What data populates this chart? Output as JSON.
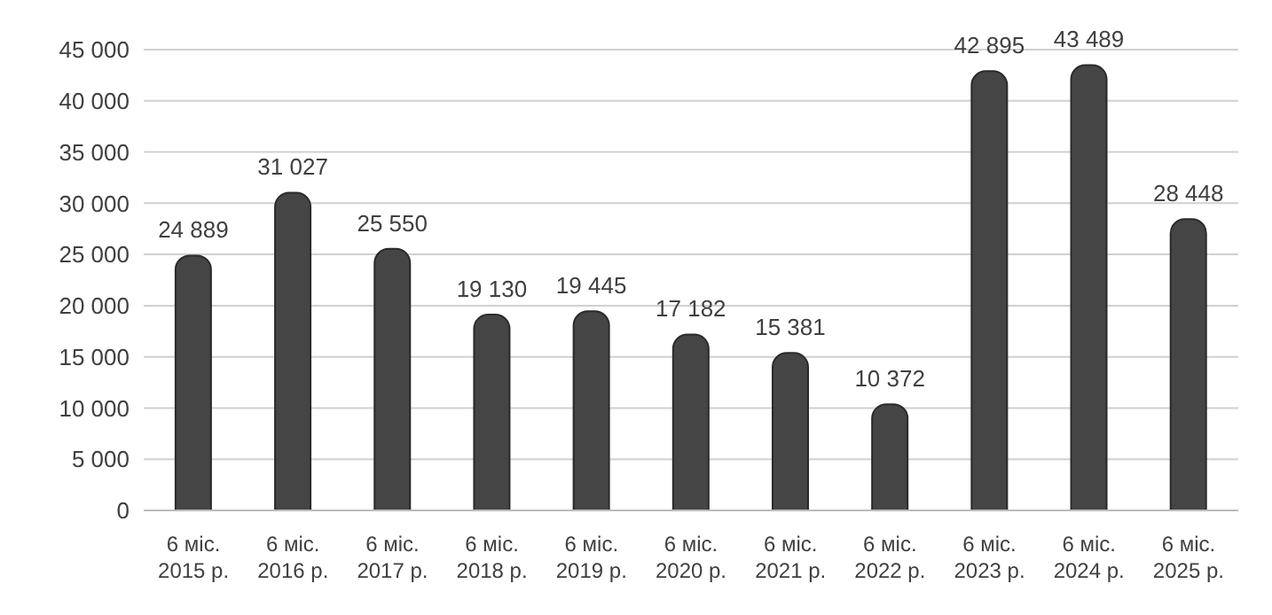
{
  "chart_data": {
    "type": "bar",
    "categories": [
      "6 міс.\n2015 р.",
      "6 міс.\n2016 р.",
      "6 міс.\n2017 р.",
      "6 міс.\n2018 р.",
      "6 міс.\n2019 р.",
      "6 міс.\n2020 р.",
      "6 міс.\n2021 р.",
      "6 міс.\n2022 р.",
      "6 міс.\n2023 р.",
      "6 міс.\n2024 р.",
      "6 міс.\n2025 р."
    ],
    "values": [
      24889,
      31027,
      25550,
      19130,
      19445,
      17182,
      15381,
      10372,
      42895,
      43489,
      28448
    ],
    "value_labels": [
      "24 889",
      "31 027",
      "25 550",
      "19 130",
      "19 445",
      "17 182",
      "15 381",
      "10 372",
      "42 895",
      "43 489",
      "28 448"
    ],
    "color": "#454545",
    "ylim": [
      0,
      45000
    ],
    "yticks": [
      {
        "value": 0,
        "label": "0"
      },
      {
        "value": 5000,
        "label": "5 000"
      },
      {
        "value": 10000,
        "label": "10 000"
      },
      {
        "value": 15000,
        "label": "15 000"
      },
      {
        "value": 20000,
        "label": "20 000"
      },
      {
        "value": 25000,
        "label": "25 000"
      },
      {
        "value": 30000,
        "label": "30 000"
      },
      {
        "value": 35000,
        "label": "35 000"
      },
      {
        "value": 40000,
        "label": "40 000"
      },
      {
        "value": 45000,
        "label": "45 000"
      }
    ],
    "grid": "y"
  }
}
